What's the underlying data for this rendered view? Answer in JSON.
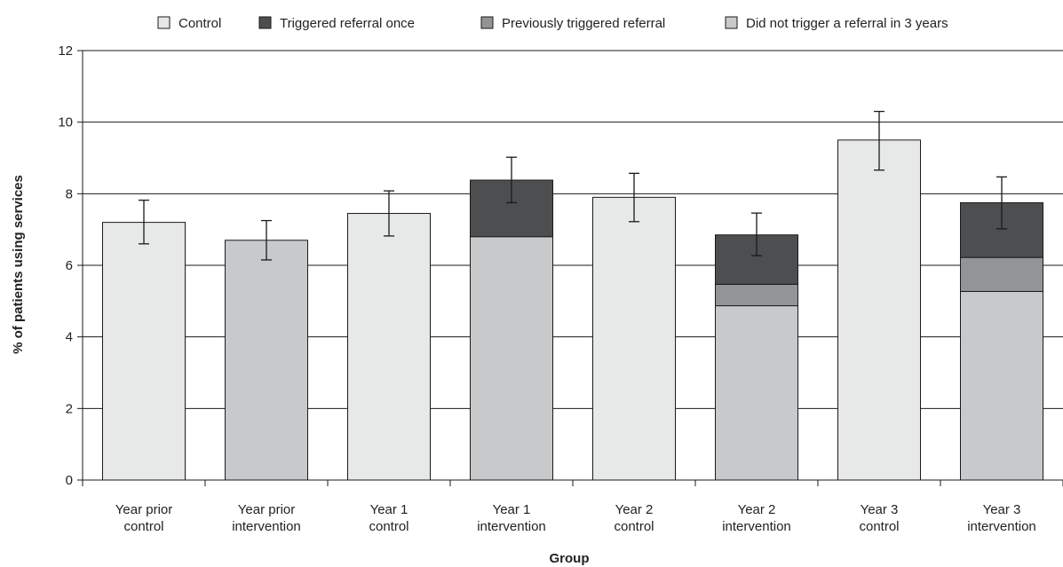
{
  "chart_data": {
    "type": "bar",
    "stacked": true,
    "title": "",
    "xlabel": "Group",
    "ylabel": "% of patients using services",
    "ylim": [
      0,
      12
    ],
    "yticks": [
      0,
      2,
      4,
      6,
      8,
      10,
      12
    ],
    "grid": true,
    "legend_position": "top",
    "categories": [
      [
        "Year prior",
        "control"
      ],
      [
        "Year prior",
        "intervention"
      ],
      [
        "Year 1",
        "control"
      ],
      [
        "Year 1",
        "intervention"
      ],
      [
        "Year 2",
        "control"
      ],
      [
        "Year 2",
        "intervention"
      ],
      [
        "Year 3",
        "control"
      ],
      [
        "Year 3",
        "intervention"
      ]
    ],
    "series": [
      {
        "name": "Control",
        "color": "#e7e8e8",
        "values": [
          7.2,
          0,
          7.45,
          0,
          7.9,
          0,
          9.5,
          0
        ]
      },
      {
        "name": "Did not trigger a referral in 3 years",
        "color": "#c8c9cb",
        "values": [
          0,
          6.7,
          0,
          6.8,
          0,
          4.87,
          0,
          5.27
        ]
      },
      {
        "name": "Previously triggered referral",
        "color": "#939496",
        "values": [
          0,
          0,
          0,
          0,
          0,
          0.6,
          0,
          0.95
        ]
      },
      {
        "name": "Triggered referral once",
        "color": "#4d4e50",
        "values": [
          0,
          0,
          0,
          1.58,
          0,
          1.38,
          0,
          1.53
        ]
      }
    ],
    "totals": [
      7.2,
      6.7,
      7.45,
      8.38,
      7.9,
      6.85,
      9.5,
      7.75
    ],
    "error_bars": [
      [
        6.6,
        7.82
      ],
      [
        6.15,
        7.25
      ],
      [
        6.82,
        8.08
      ],
      [
        7.75,
        9.02
      ],
      [
        7.22,
        8.57
      ],
      [
        6.27,
        7.46
      ],
      [
        8.66,
        10.3
      ],
      [
        7.02,
        8.47
      ]
    ],
    "legend_order": [
      "Control",
      "Triggered referral once",
      "Previously triggered referral",
      "Did not trigger a referral in 3 years"
    ]
  }
}
